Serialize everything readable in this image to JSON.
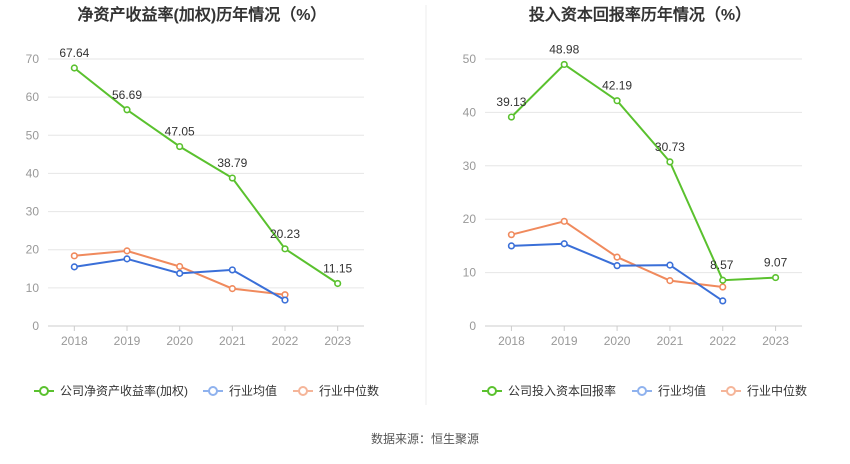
{
  "source_label": "数据来源：恒生聚源",
  "colors": {
    "company": "#5ac12e",
    "industry_avg": "#3a6fd8",
    "industry_median": "#f08a5d",
    "grid": "#e6e6e6",
    "axis_text": "#999999",
    "title": "#333333",
    "label": "#333333",
    "divider": "#eeeeee",
    "axis_line": "#cccccc"
  },
  "chart_data": [
    {
      "type": "line",
      "title": "净资产收益率(加权)历年情况（%）",
      "categories": [
        "2018",
        "2019",
        "2020",
        "2021",
        "2022",
        "2023"
      ],
      "ylim": [
        0,
        70
      ],
      "yticks": [
        0,
        10,
        20,
        30,
        40,
        50,
        60,
        70
      ],
      "grid": true,
      "legend_position": "bottom",
      "series": [
        {
          "name": "公司净资产收益率(加权)",
          "key": "company",
          "values": [
            67.64,
            56.69,
            47.05,
            38.79,
            20.23,
            11.15
          ],
          "show_labels": true
        },
        {
          "name": "行业均值",
          "key": "industry_avg",
          "values": [
            15.5,
            17.6,
            13.8,
            14.7,
            6.8,
            null
          ],
          "show_labels": false
        },
        {
          "name": "行业中位数",
          "key": "industry_median",
          "values": [
            18.4,
            19.7,
            15.6,
            9.8,
            8.2,
            null
          ],
          "show_labels": false
        }
      ]
    },
    {
      "type": "line",
      "title": "投入资本回报率历年情况（%）",
      "categories": [
        "2018",
        "2019",
        "2020",
        "2021",
        "2022",
        "2023"
      ],
      "ylim": [
        0,
        50
      ],
      "yticks": [
        0,
        10,
        20,
        30,
        40,
        50
      ],
      "grid": true,
      "legend_position": "bottom",
      "series": [
        {
          "name": "公司投入资本回报率",
          "key": "company",
          "values": [
            39.13,
            48.98,
            42.19,
            30.73,
            8.57,
            9.07
          ],
          "show_labels": true
        },
        {
          "name": "行业均值",
          "key": "industry_avg",
          "values": [
            15.0,
            15.4,
            11.3,
            11.4,
            4.7,
            null
          ],
          "show_labels": false
        },
        {
          "name": "行业中位数",
          "key": "industry_median",
          "values": [
            17.1,
            19.6,
            12.9,
            8.5,
            7.3,
            null
          ],
          "show_labels": false
        }
      ]
    }
  ]
}
